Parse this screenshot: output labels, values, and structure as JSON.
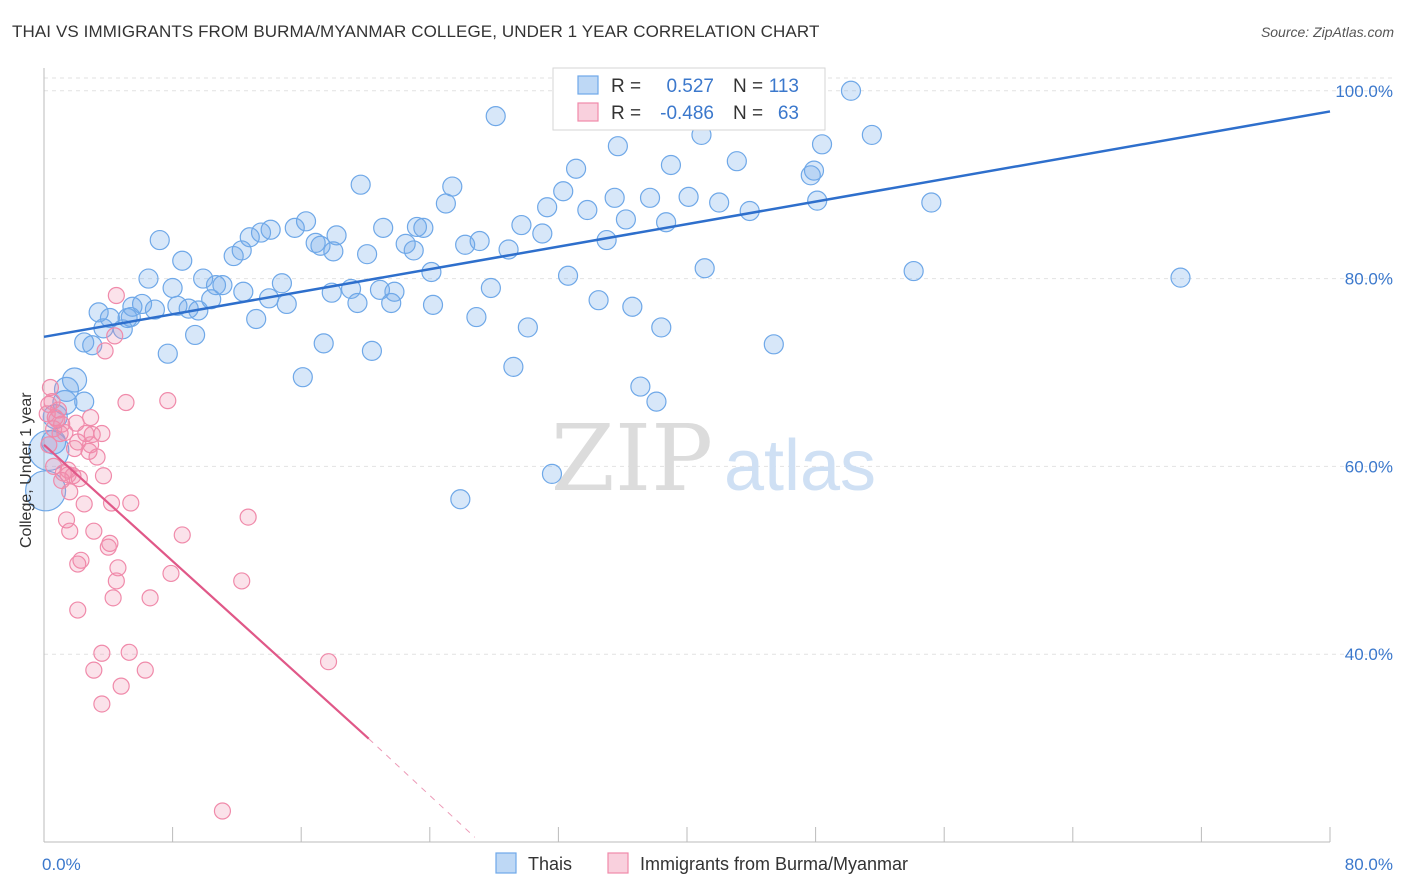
{
  "title": "THAI VS IMMIGRANTS FROM BURMA/MYANMAR COLLEGE, UNDER 1 YEAR CORRELATION CHART",
  "source": "Source: ZipAtlas.com",
  "watermark": {
    "zip": "ZIP",
    "atlas": "atlas"
  },
  "colors": {
    "blue": "#6fa8e8",
    "blue_fill": "rgba(111,168,232,0.28)",
    "blue_line": "#2e6fcc",
    "pink": "#f08aaa",
    "pink_fill": "rgba(240,138,170,0.25)",
    "pink_line": "#e05888",
    "grid": "#e2e2e2",
    "axis_text": "#3b78cc"
  },
  "legend_box": {
    "rows": [
      {
        "r_label": "R =",
        "r_value": "0.527",
        "n_label": "N =",
        "n_value": "113"
      },
      {
        "r_label": "R =",
        "r_value": "-0.486",
        "n_label": "N =",
        "n_value": "63"
      }
    ]
  },
  "chart_data": {
    "type": "scatter",
    "title": "THAI VS IMMIGRANTS FROM BURMA/MYANMAR COLLEGE, UNDER 1 YEAR CORRELATION CHART",
    "xlabel": "",
    "ylabel": "College, Under 1 year",
    "xlim": [
      0,
      80
    ],
    "ylim": [
      20,
      102
    ],
    "x_tick_labels": [
      "0.0%",
      "80.0%"
    ],
    "y_ticks": [
      40,
      60,
      80,
      100
    ],
    "y_tick_labels": [
      "40.0%",
      "60.0%",
      "80.0%",
      "100.0%"
    ],
    "legend_position": "bottom-center",
    "series": [
      {
        "name": "Thais",
        "r": 0.527,
        "n": 113,
        "trend": {
          "x0": 0,
          "y0": 73.8,
          "x1": 80,
          "y1": 97.8
        },
        "points": [
          [
            0.1,
            57.4
          ],
          [
            0.3,
            61.7
          ],
          [
            0.6,
            62.6
          ],
          [
            0.7,
            65.3
          ],
          [
            1.3,
            66.8
          ],
          [
            1.4,
            68.2
          ],
          [
            1.9,
            69.2
          ],
          [
            2.5,
            66.9
          ],
          [
            2.5,
            73.2
          ],
          [
            3.0,
            72.9
          ],
          [
            3.4,
            76.4
          ],
          [
            3.7,
            74.7
          ],
          [
            4.1,
            75.8
          ],
          [
            4.9,
            74.6
          ],
          [
            5.2,
            75.8
          ],
          [
            5.4,
            75.9
          ],
          [
            5.5,
            77.0
          ],
          [
            6.1,
            77.3
          ],
          [
            6.5,
            80.0
          ],
          [
            6.9,
            76.7
          ],
          [
            7.2,
            84.1
          ],
          [
            7.7,
            72.0
          ],
          [
            8.0,
            79.0
          ],
          [
            8.3,
            77.1
          ],
          [
            8.6,
            81.9
          ],
          [
            9.0,
            76.8
          ],
          [
            9.4,
            74.0
          ],
          [
            9.6,
            76.6
          ],
          [
            9.9,
            80.0
          ],
          [
            10.4,
            77.8
          ],
          [
            10.7,
            79.3
          ],
          [
            11.1,
            79.3
          ],
          [
            11.8,
            82.4
          ],
          [
            12.3,
            83.0
          ],
          [
            12.4,
            78.6
          ],
          [
            12.8,
            84.4
          ],
          [
            13.2,
            75.7
          ],
          [
            13.5,
            84.9
          ],
          [
            14.1,
            85.2
          ],
          [
            14.0,
            77.9
          ],
          [
            14.8,
            79.5
          ],
          [
            15.1,
            77.3
          ],
          [
            15.6,
            85.4
          ],
          [
            16.3,
            86.1
          ],
          [
            16.1,
            69.5
          ],
          [
            16.9,
            83.8
          ],
          [
            17.2,
            83.5
          ],
          [
            17.4,
            73.1
          ],
          [
            17.9,
            78.5
          ],
          [
            18.2,
            84.6
          ],
          [
            18.0,
            82.9
          ],
          [
            19.1,
            78.9
          ],
          [
            19.7,
            90.0
          ],
          [
            19.5,
            77.4
          ],
          [
            20.1,
            82.6
          ],
          [
            20.4,
            72.3
          ],
          [
            20.9,
            78.8
          ],
          [
            21.1,
            85.4
          ],
          [
            21.6,
            77.4
          ],
          [
            21.8,
            78.6
          ],
          [
            22.5,
            83.7
          ],
          [
            23.0,
            83.0
          ],
          [
            23.2,
            85.5
          ],
          [
            23.6,
            85.4
          ],
          [
            24.1,
            80.7
          ],
          [
            24.2,
            77.2
          ],
          [
            25.0,
            88.0
          ],
          [
            25.4,
            89.8
          ],
          [
            25.9,
            56.5
          ],
          [
            26.2,
            83.6
          ],
          [
            26.9,
            75.9
          ],
          [
            27.1,
            84.0
          ],
          [
            27.8,
            79.0
          ],
          [
            28.1,
            97.3
          ],
          [
            28.9,
            83.1
          ],
          [
            29.2,
            70.6
          ],
          [
            29.7,
            85.7
          ],
          [
            30.1,
            74.8
          ],
          [
            31.0,
            84.8
          ],
          [
            31.3,
            87.6
          ],
          [
            31.6,
            59.2
          ],
          [
            32.3,
            89.3
          ],
          [
            32.6,
            80.3
          ],
          [
            33.1,
            91.7
          ],
          [
            33.8,
            87.3
          ],
          [
            34.5,
            77.7
          ],
          [
            35.0,
            84.1
          ],
          [
            35.5,
            88.6
          ],
          [
            35.7,
            94.1
          ],
          [
            36.2,
            86.3
          ],
          [
            36.6,
            77.0
          ],
          [
            37.1,
            68.5
          ],
          [
            37.7,
            88.6
          ],
          [
            38.1,
            66.9
          ],
          [
            38.4,
            74.8
          ],
          [
            38.7,
            86.0
          ],
          [
            39.0,
            92.1
          ],
          [
            40.1,
            88.7
          ],
          [
            40.9,
            95.3
          ],
          [
            41.1,
            81.1
          ],
          [
            42.0,
            88.1
          ],
          [
            43.1,
            92.5
          ],
          [
            43.9,
            87.2
          ],
          [
            45.4,
            73.0
          ],
          [
            47.7,
            91.0
          ],
          [
            47.9,
            91.5
          ],
          [
            48.1,
            88.3
          ],
          [
            48.4,
            94.3
          ],
          [
            50.2,
            100.0
          ],
          [
            51.5,
            95.3
          ],
          [
            54.1,
            80.8
          ],
          [
            55.2,
            88.1
          ],
          [
            70.7,
            80.1
          ]
        ]
      },
      {
        "name": "Immigrants from Burma/Myanmar",
        "r": -0.486,
        "n": 63,
        "trend": {
          "x0": 0,
          "y0": 62.3,
          "x1": 20.2,
          "y1": 31.0,
          "dash_x1": 26.8,
          "dash_y1": 20.5
        },
        "points": [
          [
            0.2,
            65.6
          ],
          [
            0.3,
            66.6
          ],
          [
            0.3,
            62.3
          ],
          [
            0.4,
            68.4
          ],
          [
            0.5,
            66.9
          ],
          [
            0.6,
            64.0
          ],
          [
            0.6,
            60.0
          ],
          [
            0.7,
            65.2
          ],
          [
            0.8,
            65.0
          ],
          [
            0.9,
            66.0
          ],
          [
            1.0,
            63.5
          ],
          [
            1.1,
            64.5
          ],
          [
            1.1,
            58.5
          ],
          [
            1.2,
            59.3
          ],
          [
            1.3,
            63.6
          ],
          [
            1.4,
            54.3
          ],
          [
            1.5,
            59.1
          ],
          [
            1.6,
            57.3
          ],
          [
            1.6,
            53.1
          ],
          [
            1.8,
            59.0
          ],
          [
            1.9,
            61.9
          ],
          [
            2.0,
            64.6
          ],
          [
            2.1,
            62.6
          ],
          [
            2.1,
            44.7
          ],
          [
            2.1,
            49.6
          ],
          [
            2.2,
            58.7
          ],
          [
            2.3,
            50.0
          ],
          [
            2.5,
            56.0
          ],
          [
            2.6,
            63.5
          ],
          [
            2.8,
            61.6
          ],
          [
            2.9,
            62.3
          ],
          [
            2.9,
            65.2
          ],
          [
            3.0,
            63.4
          ],
          [
            3.1,
            38.3
          ],
          [
            3.1,
            53.1
          ],
          [
            3.3,
            61.0
          ],
          [
            3.6,
            40.1
          ],
          [
            3.6,
            34.7
          ],
          [
            3.6,
            63.5
          ],
          [
            3.7,
            59.0
          ],
          [
            3.8,
            72.3
          ],
          [
            4.0,
            51.4
          ],
          [
            4.1,
            51.8
          ],
          [
            4.2,
            56.1
          ],
          [
            4.3,
            46.0
          ],
          [
            4.4,
            73.9
          ],
          [
            4.5,
            47.8
          ],
          [
            4.5,
            78.2
          ],
          [
            4.6,
            49.2
          ],
          [
            4.8,
            36.6
          ],
          [
            5.1,
            66.8
          ],
          [
            5.3,
            40.2
          ],
          [
            5.4,
            56.1
          ],
          [
            6.3,
            38.3
          ],
          [
            6.6,
            46.0
          ],
          [
            7.7,
            67.0
          ],
          [
            7.9,
            48.6
          ],
          [
            8.6,
            52.7
          ],
          [
            11.1,
            23.3
          ],
          [
            12.3,
            47.8
          ],
          [
            12.7,
            54.6
          ],
          [
            17.7,
            39.2
          ],
          [
            1.5,
            59.6
          ]
        ]
      }
    ]
  }
}
